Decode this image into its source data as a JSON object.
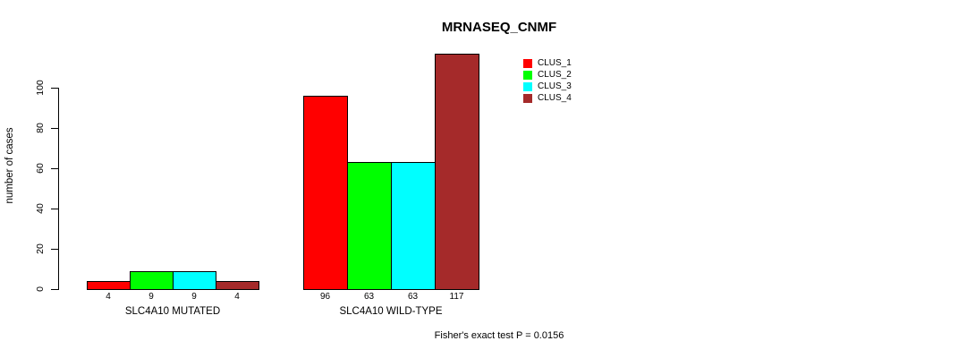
{
  "title": "MRNASEQ_CNMF",
  "chart_data": {
    "type": "bar",
    "title": "MRNASEQ_CNMF",
    "xlabel": "",
    "ylabel": "number of cases",
    "ylim": [
      0,
      100
    ],
    "yticks": [
      0,
      20,
      40,
      60,
      80,
      100
    ],
    "grid": false,
    "legend_position": "top-right",
    "categories": [
      "SLC4A10 MUTATED",
      "SLC4A10 WILD-TYPE"
    ],
    "series": [
      {
        "name": "CLUS_1",
        "color": "#FF0000",
        "values": [
          4,
          96
        ]
      },
      {
        "name": "CLUS_2",
        "color": "#00FF00",
        "values": [
          9,
          63
        ]
      },
      {
        "name": "CLUS_3",
        "color": "#00FFFF",
        "values": [
          9,
          63
        ]
      },
      {
        "name": "CLUS_4",
        "color": "#A52A2A",
        "values": [
          4,
          117
        ]
      }
    ],
    "bar_value_labels": [
      [
        "4",
        "9",
        "9",
        "4"
      ],
      [
        "96",
        "63",
        "63",
        "117"
      ]
    ],
    "annotation": "Fisher's exact test P = 0.0156"
  },
  "colors": {
    "background": "#FFFFFF",
    "axis": "#000000",
    "bar_border": "#000000",
    "text": "#000000"
  }
}
